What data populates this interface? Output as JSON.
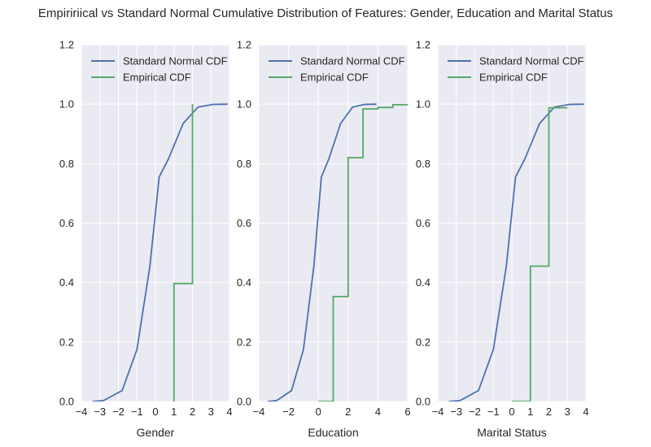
{
  "figure": {
    "title": "Empiririical vs Standard Normal Cumulative Distribution of Features: Gender, Education and Marital Status",
    "background": "#ffffff",
    "axes_bg": "#eaeaf2",
    "grid_color": "#ffffff",
    "text_color": "#262626"
  },
  "chart_data": [
    {
      "type": "line",
      "title": "",
      "xlabel": "Gender",
      "ylabel": "",
      "xlim": [
        -4,
        4
      ],
      "ylim": [
        0.0,
        1.2
      ],
      "xticks": [
        "−4",
        "−3",
        "−2",
        "−1",
        "0",
        "1",
        "2",
        "3",
        "4"
      ],
      "yticks": [
        "0.0",
        "0.2",
        "0.4",
        "0.6",
        "0.8",
        "1.0",
        "1.2"
      ],
      "grid": true,
      "legend": {
        "position": "top-left"
      },
      "series": [
        {
          "name": "Standard Normal CDF",
          "color": "#4c72b0",
          "step": false,
          "x": [
            -3.4,
            -2.8,
            -1.8,
            -1.0,
            -0.3,
            0.2,
            0.7,
            1.5,
            2.3,
            3.1,
            3.9
          ],
          "y": [
            0.0,
            0.003,
            0.037,
            0.175,
            0.455,
            0.755,
            0.815,
            0.935,
            0.99,
            0.999,
            1.0
          ]
        },
        {
          "name": "Empirical CDF",
          "color": "#55a868",
          "step": true,
          "x": [
            1.0,
            1.0,
            2.0,
            2.0
          ],
          "y": [
            0.0,
            0.397,
            0.397,
            1.0
          ]
        }
      ]
    },
    {
      "type": "line",
      "title": "",
      "xlabel": "Education",
      "ylabel": "",
      "xlim": [
        -4,
        6
      ],
      "ylim": [
        0.0,
        1.2
      ],
      "xticks": [
        "−4",
        "−2",
        "0",
        "2",
        "4",
        "6"
      ],
      "yticks": [
        "0.0",
        "0.2",
        "0.4",
        "0.6",
        "0.8",
        "1.0",
        "1.2"
      ],
      "grid": true,
      "legend": {
        "position": "top-left"
      },
      "series": [
        {
          "name": "Standard Normal CDF",
          "color": "#4c72b0",
          "step": false,
          "x": [
            -3.4,
            -2.8,
            -1.8,
            -1.0,
            -0.3,
            0.2,
            0.7,
            1.5,
            2.3,
            3.1,
            3.9
          ],
          "y": [
            0.0,
            0.003,
            0.037,
            0.175,
            0.455,
            0.755,
            0.815,
            0.935,
            0.99,
            0.999,
            1.0
          ]
        },
        {
          "name": "Empirical CDF",
          "color": "#55a868",
          "step": true,
          "x": [
            0.0,
            1.0,
            1.0,
            2.0,
            2.0,
            3.0,
            3.0,
            4.0,
            4.0,
            5.0,
            5.0,
            6.0
          ],
          "y": [
            0.0,
            0.0,
            0.353,
            0.353,
            0.82,
            0.82,
            0.984,
            0.984,
            0.989,
            0.989,
            0.998,
            0.998
          ]
        }
      ]
    },
    {
      "type": "line",
      "title": "",
      "xlabel": "Marital Status",
      "ylabel": "",
      "xlim": [
        -4,
        4
      ],
      "ylim": [
        0.0,
        1.2
      ],
      "xticks": [
        "−4",
        "−3",
        "−2",
        "−1",
        "0",
        "1",
        "2",
        "3",
        "4"
      ],
      "yticks": [
        "0.0",
        "0.2",
        "0.4",
        "0.6",
        "0.8",
        "1.0",
        "1.2"
      ],
      "grid": true,
      "legend": {
        "position": "top-left"
      },
      "series": [
        {
          "name": "Standard Normal CDF",
          "color": "#4c72b0",
          "step": false,
          "x": [
            -3.4,
            -2.8,
            -1.8,
            -1.0,
            -0.3,
            0.2,
            0.7,
            1.5,
            2.3,
            3.1,
            3.9
          ],
          "y": [
            0.0,
            0.003,
            0.037,
            0.175,
            0.455,
            0.755,
            0.815,
            0.935,
            0.99,
            0.999,
            1.0
          ]
        },
        {
          "name": "Empirical CDF",
          "color": "#55a868",
          "step": true,
          "x": [
            0.0,
            1.0,
            1.0,
            2.0,
            2.0,
            3.0
          ],
          "y": [
            0.0,
            0.0,
            0.455,
            0.455,
            0.988,
            0.988
          ]
        }
      ]
    }
  ]
}
